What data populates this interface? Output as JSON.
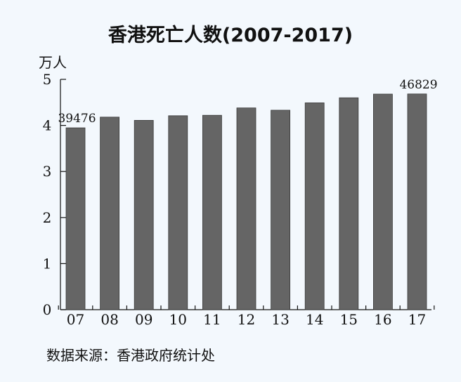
{
  "chart_data": {
    "type": "bar",
    "title": "香港死亡人数(2007-2017)",
    "unit_label": "万人",
    "categories": [
      "07",
      "08",
      "09",
      "10",
      "11",
      "12",
      "13",
      "14",
      "15",
      "16",
      "17"
    ],
    "values": [
      3.9476,
      4.18,
      4.11,
      4.21,
      4.22,
      4.38,
      4.33,
      4.49,
      4.6,
      4.68,
      4.6829
    ],
    "data_labels": [
      {
        "index": 0,
        "text": "39476"
      },
      {
        "index": 10,
        "text": "46829"
      }
    ],
    "ylim": [
      0,
      5
    ],
    "yticks": [
      0,
      1,
      2,
      3,
      4,
      5
    ],
    "bar_color": "#656565",
    "grid": false
  },
  "source": "数据来源：香港政府统计处"
}
